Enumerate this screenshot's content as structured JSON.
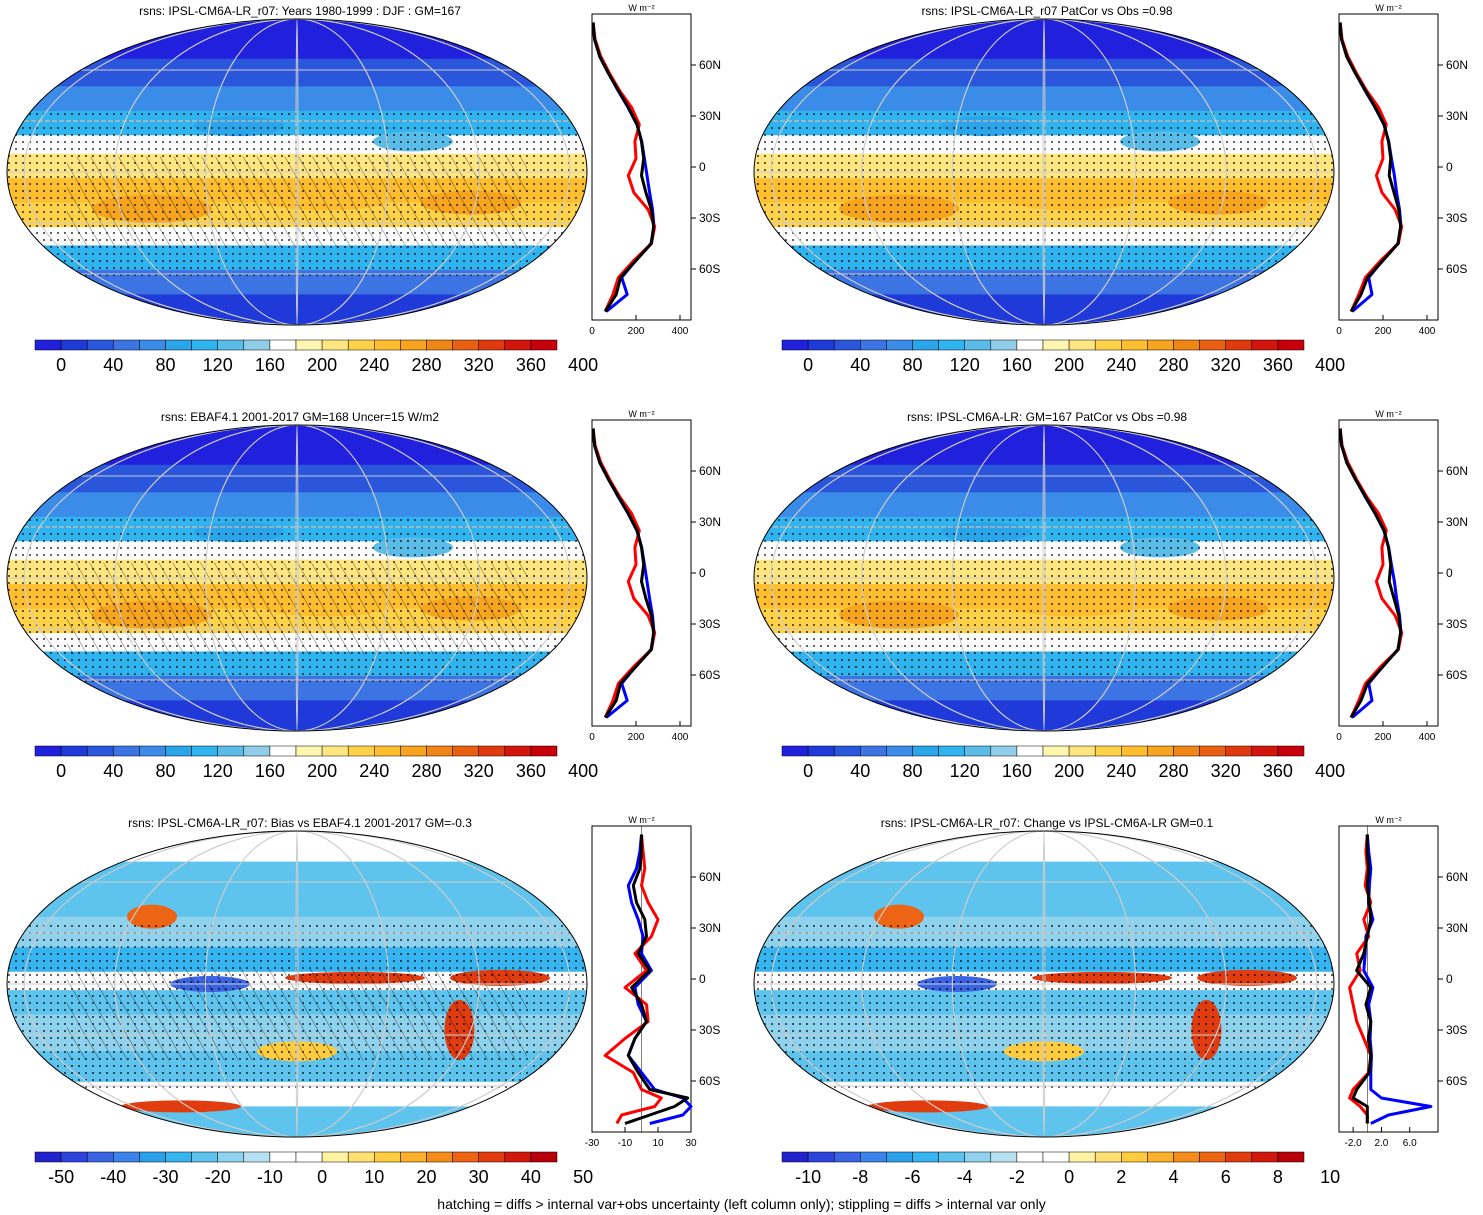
{
  "footer": "hatching = diffs > internal var+obs uncertainty (left column only); stippling = diffs > internal var only",
  "colors": {
    "mean": [
      "#2020dd",
      "#1f3ad8",
      "#2a56dc",
      "#3c74e4",
      "#3b8ce8",
      "#2aa5ea",
      "#30b4f0",
      "#5cbce8",
      "#8fcde9",
      "#ffffff",
      "#fff6b0",
      "#ffe680",
      "#ffd24a",
      "#ffbe30",
      "#f7a41e",
      "#f08616",
      "#ea6012",
      "#e03a10",
      "#d2160d",
      "#c8000c"
    ],
    "diff": [
      "#2222cc",
      "#2c44dd",
      "#3a64e4",
      "#3c84ea",
      "#2aa0ea",
      "#35b4f0",
      "#5ec4ee",
      "#8fd2ee",
      "#b8e2f2",
      "#ffffff",
      "#ffffff",
      "#fff2a0",
      "#ffe070",
      "#ffcc40",
      "#fbb02c",
      "#f48c1c",
      "#ec6414",
      "#e03c10",
      "#d0180c",
      "#b8000a"
    ],
    "obs_line": "#0000ff",
    "model_line": "#ff0000",
    "mean_line": "#000000"
  },
  "chart_data": [
    {
      "type": "heatmap",
      "title": "rsns: IPSL-CM6A-LR_r07: Years 1980-1999 : DJF : GM=167",
      "colorbar_labels": [
        "0",
        "40",
        "80",
        "120",
        "160",
        "200",
        "240",
        "280",
        "320",
        "360",
        "400"
      ],
      "field": "mean",
      "zonal_profile": {
        "units": "W m⁻²",
        "xlim": [
          0,
          450
        ],
        "x_ticks": [
          "0",
          "200",
          "400"
        ],
        "y_ticks": [
          "60N",
          "30N",
          "0",
          "30S",
          "60S"
        ],
        "y_tick_values": [
          60,
          30,
          0,
          -30,
          -60
        ],
        "lat": [
          85,
          75,
          65,
          55,
          45,
          35,
          25,
          15,
          5,
          -5,
          -15,
          -25,
          -35,
          -45,
          -55,
          -65,
          -75,
          -85
        ],
        "mean": [
          5,
          12,
          35,
          75,
          120,
          165,
          205,
          225,
          235,
          225,
          245,
          270,
          280,
          270,
          200,
          130,
          110,
          60
        ],
        "model": [
          5,
          14,
          40,
          80,
          125,
          180,
          215,
          195,
          200,
          165,
          190,
          255,
          285,
          270,
          190,
          120,
          95,
          60
        ],
        "obs": [
          5,
          12,
          36,
          76,
          118,
          164,
          204,
          226,
          238,
          250,
          262,
          275,
          282,
          268,
          198,
          135,
          160,
          65
        ]
      }
    },
    {
      "type": "heatmap",
      "title": "rsns: IPSL-CM6A-LR_r07 PatCor vs Obs =0.98",
      "colorbar_labels": [
        "0",
        "40",
        "80",
        "120",
        "160",
        "200",
        "240",
        "280",
        "320",
        "360",
        "400"
      ],
      "field": "mean",
      "zonal_profile": {
        "units": "W m⁻²",
        "xlim": [
          0,
          450
        ],
        "x_ticks": [
          "0",
          "200",
          "400"
        ],
        "y_ticks": [
          "60N",
          "30N",
          "0",
          "30S",
          "60S"
        ],
        "y_tick_values": [
          60,
          30,
          0,
          -30,
          -60
        ],
        "lat": [
          85,
          75,
          65,
          55,
          45,
          35,
          25,
          15,
          5,
          -5,
          -15,
          -25,
          -35,
          -45,
          -55,
          -65,
          -75,
          -85
        ],
        "mean": [
          5,
          12,
          35,
          75,
          120,
          165,
          205,
          225,
          235,
          228,
          250,
          272,
          280,
          268,
          200,
          130,
          100,
          55
        ],
        "model": [
          5,
          14,
          40,
          80,
          125,
          180,
          215,
          195,
          200,
          170,
          195,
          255,
          285,
          270,
          190,
          120,
          90,
          55
        ],
        "obs": [
          5,
          12,
          36,
          76,
          118,
          164,
          204,
          226,
          238,
          252,
          262,
          275,
          282,
          268,
          198,
          135,
          150,
          60
        ]
      }
    },
    {
      "type": "heatmap",
      "title": "rsns: EBAF4.1 2001-2017 GM=168 Uncer=15 W/m2",
      "colorbar_labels": [
        "0",
        "40",
        "80",
        "120",
        "160",
        "200",
        "240",
        "280",
        "320",
        "360",
        "400"
      ],
      "field": "mean",
      "zonal_profile": {
        "units": "W m⁻²",
        "xlim": [
          0,
          450
        ],
        "x_ticks": [
          "0",
          "200",
          "400"
        ],
        "y_ticks": [
          "60N",
          "30N",
          "0",
          "30S",
          "60S"
        ],
        "y_tick_values": [
          60,
          30,
          0,
          -30,
          -60
        ],
        "lat": [
          85,
          75,
          65,
          55,
          45,
          35,
          25,
          15,
          5,
          -5,
          -15,
          -25,
          -35,
          -45,
          -55,
          -65,
          -75,
          -85
        ],
        "mean": [
          5,
          12,
          35,
          75,
          120,
          165,
          205,
          225,
          235,
          225,
          245,
          270,
          280,
          270,
          200,
          130,
          110,
          60
        ],
        "model": [
          5,
          14,
          40,
          80,
          125,
          180,
          215,
          195,
          200,
          165,
          190,
          255,
          285,
          270,
          190,
          120,
          95,
          60
        ],
        "obs": [
          5,
          12,
          36,
          76,
          118,
          164,
          204,
          226,
          238,
          250,
          262,
          275,
          282,
          268,
          198,
          135,
          160,
          65
        ]
      }
    },
    {
      "type": "heatmap",
      "title": "rsns: IPSL-CM6A-LR: GM=167 PatCor vs Obs =0.98",
      "colorbar_labels": [
        "0",
        "40",
        "80",
        "120",
        "160",
        "200",
        "240",
        "280",
        "320",
        "360",
        "400"
      ],
      "field": "mean",
      "zonal_profile": {
        "units": "W m⁻²",
        "xlim": [
          0,
          450
        ],
        "x_ticks": [
          "0",
          "200",
          "400"
        ],
        "y_ticks": [
          "60N",
          "30N",
          "0",
          "30S",
          "60S"
        ],
        "y_tick_values": [
          60,
          30,
          0,
          -30,
          -60
        ],
        "lat": [
          85,
          75,
          65,
          55,
          45,
          35,
          25,
          15,
          5,
          -5,
          -15,
          -25,
          -35,
          -45,
          -55,
          -65,
          -75,
          -85
        ],
        "mean": [
          5,
          12,
          35,
          75,
          120,
          165,
          205,
          225,
          235,
          228,
          250,
          272,
          280,
          268,
          200,
          130,
          100,
          55
        ],
        "model": [
          5,
          14,
          40,
          80,
          125,
          180,
          215,
          195,
          200,
          170,
          195,
          255,
          285,
          270,
          190,
          120,
          90,
          55
        ],
        "obs": [
          5,
          12,
          36,
          76,
          118,
          164,
          204,
          226,
          238,
          252,
          262,
          275,
          282,
          268,
          198,
          135,
          150,
          60
        ]
      }
    },
    {
      "type": "heatmap",
      "title": "rsns: IPSL-CM6A-LR_r07: Bias vs EBAF4.1 2001-2017 GM=-0.3",
      "colorbar_labels": [
        "-50",
        "-40",
        "-30",
        "-20",
        "-10",
        "0",
        "10",
        "20",
        "30",
        "40",
        "50"
      ],
      "field": "diff",
      "zonal_profile": {
        "units": "W m⁻²",
        "xlim": [
          -30,
          30
        ],
        "x_ticks": [
          "-30",
          "-10",
          "10",
          "30"
        ],
        "y_ticks": [
          "60N",
          "30N",
          "0",
          "30S",
          "60S"
        ],
        "y_tick_values": [
          60,
          30,
          0,
          -30,
          -60
        ],
        "lat": [
          85,
          75,
          65,
          55,
          45,
          35,
          25,
          15,
          5,
          -5,
          -15,
          -25,
          -35,
          -45,
          -55,
          -65,
          -70,
          -75,
          -80,
          -85
        ],
        "mean": [
          0,
          0,
          -1,
          -5,
          -3,
          2,
          3,
          -2,
          5,
          -6,
          0,
          3,
          -4,
          -8,
          -2,
          5,
          28,
          20,
          5,
          -10
        ],
        "model": [
          0,
          1,
          2,
          0,
          4,
          10,
          6,
          -4,
          3,
          -10,
          3,
          4,
          -10,
          -22,
          -5,
          0,
          12,
          8,
          -12,
          -15
        ],
        "obs": [
          0,
          -1,
          -3,
          -8,
          -6,
          -2,
          1,
          0,
          6,
          -4,
          -2,
          3,
          -4,
          -8,
          0,
          8,
          25,
          30,
          25,
          5
        ]
      }
    },
    {
      "type": "heatmap",
      "title": "rsns: IPSL-CM6A-LR_r07: Change vs IPSL-CM6A-LR GM=0.1",
      "colorbar_labels": [
        "-10",
        "-8",
        "-6",
        "-4",
        "-2",
        "0",
        "2",
        "4",
        "6",
        "8",
        "10"
      ],
      "field": "diff",
      "zonal_profile": {
        "units": "W m⁻²",
        "xlim": [
          -4,
          10
        ],
        "x_ticks": [
          "-2.0",
          "2.0",
          "6.0"
        ],
        "y_ticks": [
          "60N",
          "30N",
          "0",
          "30S",
          "60S"
        ],
        "y_tick_values": [
          60,
          30,
          0,
          -30,
          -60
        ],
        "lat": [
          85,
          75,
          65,
          55,
          45,
          35,
          25,
          15,
          5,
          -5,
          -15,
          -25,
          -35,
          -45,
          -55,
          -65,
          -70,
          -75,
          -80,
          -85
        ],
        "mean": [
          0,
          0,
          0.2,
          0,
          0.3,
          0.5,
          0,
          -0.5,
          -1.5,
          0.5,
          -0.2,
          0.5,
          0.2,
          0.5,
          0.3,
          -1.5,
          -2,
          0,
          0,
          0
        ],
        "model": [
          0,
          -0.2,
          0,
          -0.3,
          0.5,
          -0.5,
          0.2,
          -1.5,
          -1.0,
          -2.5,
          -2.0,
          -1.5,
          -0.5,
          0.5,
          0.2,
          -2,
          -2.5,
          -1,
          0,
          0
        ],
        "obs": [
          0,
          0.2,
          0.5,
          0.3,
          0.2,
          0.8,
          -0.2,
          -0.3,
          -0.5,
          0.8,
          0.2,
          0.5,
          0.4,
          0.6,
          0.5,
          0.5,
          2,
          9,
          3,
          0.5
        ]
      }
    }
  ]
}
